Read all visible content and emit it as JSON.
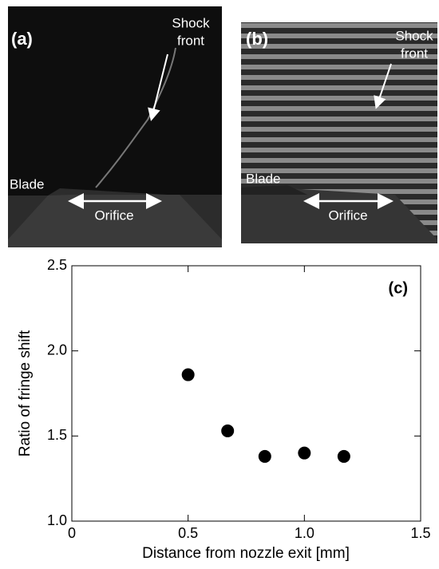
{
  "panels": {
    "a": {
      "label": "(a)",
      "shock": [
        "Shock",
        "front"
      ],
      "blade": "Blade",
      "orifice": "Orifice"
    },
    "b": {
      "label": "(b)",
      "shock": [
        "Shock",
        "front"
      ],
      "blade": "Blade",
      "orifice": "Orifice"
    }
  },
  "chart_data": {
    "type": "scatter",
    "annotation": "(c)",
    "x_label": "Distance from nozzle exit [mm]",
    "y_label": "Ratio of fringe shift",
    "x": [
      0.5,
      0.67,
      0.83,
      1.0,
      1.17
    ],
    "values": [
      1.86,
      1.53,
      1.38,
      1.4,
      1.38
    ],
    "color": "#000000",
    "xlim": [
      0,
      1.5
    ],
    "xticks": [
      0,
      0.5,
      {
        "value": 1,
        "label": "1.0"
      },
      1.5
    ],
    "ylim": [
      1,
      2.5
    ],
    "yticks": [
      {
        "value": 1,
        "label": "1.0"
      },
      1.5,
      {
        "value": 2,
        "label": "2.0"
      },
      2.5
    ]
  }
}
